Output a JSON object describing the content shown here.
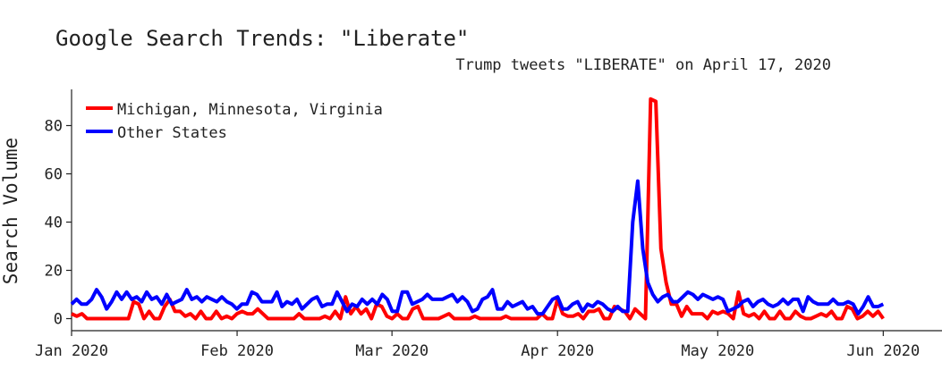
{
  "chart_data": {
    "type": "line",
    "title": "Google Search Trends: \"Liberate\"",
    "annotation": "Trump tweets \"LIBERATE\" on April 17, 2020",
    "ylabel": "Search Volume",
    "xlabel": "",
    "ylim": [
      -5,
      95
    ],
    "yticks": [
      0,
      20,
      40,
      60,
      80
    ],
    "xlim": [
      "2020-01-01",
      "2020-06-12"
    ],
    "xticks": [
      {
        "date": "2020-01-01",
        "label": "Jan 2020"
      },
      {
        "date": "2020-02-01",
        "label": "Feb 2020"
      },
      {
        "date": "2020-03-01",
        "label": "Mar 2020"
      },
      {
        "date": "2020-04-01",
        "label": "Apr 2020"
      },
      {
        "date": "2020-05-01",
        "label": "May 2020"
      },
      {
        "date": "2020-06-01",
        "label": "Jun 2020"
      }
    ],
    "grid": false,
    "legend_position": "top-left",
    "x_start": "2020-01-01",
    "x_end": "2020-06-01",
    "series": [
      {
        "name": "Michigan, Minnesota, Virginia",
        "color": "#ff0000",
        "values": [
          2,
          1,
          2,
          0,
          0,
          0,
          0,
          0,
          0,
          0,
          0,
          0,
          7,
          6,
          0,
          3,
          0,
          0,
          5,
          8,
          3,
          3,
          1,
          2,
          0,
          3,
          0,
          0,
          3,
          0,
          1,
          0,
          2,
          3,
          2,
          2,
          4,
          2,
          0,
          0,
          0,
          0,
          0,
          0,
          2,
          0,
          0,
          0,
          0,
          1,
          0,
          3,
          0,
          9,
          2,
          5,
          2,
          4,
          0,
          6,
          5,
          1,
          0,
          2,
          0,
          0,
          4,
          5,
          0,
          0,
          0,
          0,
          1,
          2,
          0,
          0,
          0,
          0,
          1,
          0,
          0,
          0,
          0,
          0,
          1,
          0,
          0,
          0,
          0,
          0,
          0,
          2,
          0,
          0,
          8,
          2,
          1,
          1,
          2,
          0,
          3,
          3,
          4,
          0,
          0,
          5,
          4,
          3,
          0,
          4,
          2,
          0,
          91,
          90,
          29,
          15,
          6,
          6,
          1,
          5,
          2,
          2,
          2,
          0,
          3,
          2,
          3,
          2,
          0,
          11,
          2,
          1,
          2,
          0,
          3,
          0,
          0,
          3,
          0,
          0,
          3,
          1,
          0,
          0,
          1,
          2,
          1,
          3,
          0,
          0,
          5,
          4,
          0,
          1,
          3,
          1,
          3,
          0
        ]
      },
      {
        "name": "Other States",
        "color": "#0000ff",
        "values": [
          6,
          8,
          6,
          6,
          8,
          12,
          9,
          4,
          7,
          11,
          8,
          11,
          8,
          9,
          7,
          11,
          8,
          9,
          6,
          10,
          6,
          7,
          8,
          12,
          8,
          9,
          7,
          9,
          8,
          7,
          9,
          7,
          6,
          4,
          6,
          6,
          11,
          10,
          7,
          7,
          7,
          11,
          5,
          7,
          6,
          8,
          4,
          6,
          8,
          9,
          5,
          6,
          6,
          11,
          7,
          3,
          6,
          5,
          8,
          6,
          8,
          6,
          10,
          8,
          3,
          3,
          11,
          11,
          6,
          7,
          8,
          10,
          8,
          8,
          8,
          9,
          10,
          7,
          9,
          7,
          3,
          4,
          8,
          9,
          12,
          4,
          4,
          7,
          5,
          6,
          7,
          4,
          5,
          2,
          2,
          5,
          8,
          9,
          4,
          4,
          6,
          7,
          3,
          6,
          5,
          7,
          6,
          4,
          3,
          5,
          3,
          3,
          40,
          57,
          29,
          15,
          10,
          7,
          9,
          10,
          7,
          7,
          9,
          11,
          10,
          8,
          10,
          9,
          8,
          9,
          8,
          3,
          4,
          5,
          7,
          8,
          5,
          7,
          8,
          6,
          5,
          6,
          8,
          6,
          8,
          8,
          3,
          9,
          7,
          6,
          6,
          6,
          8,
          6,
          6,
          7,
          6,
          2,
          5,
          9,
          5,
          5,
          6
        ]
      }
    ]
  }
}
